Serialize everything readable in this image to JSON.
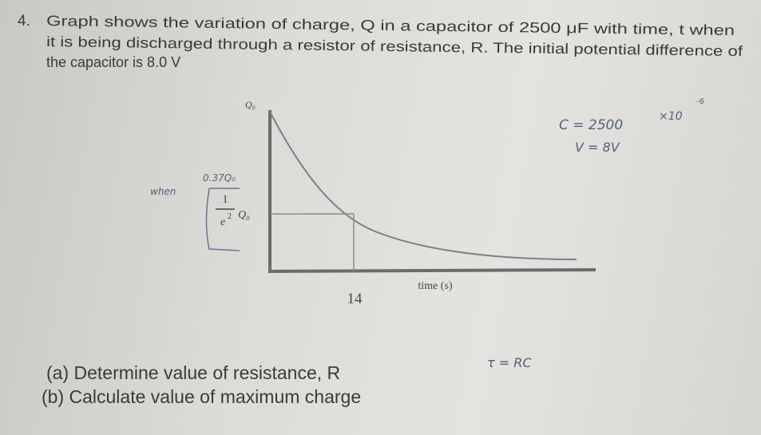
{
  "question": {
    "number": "4.",
    "lines": [
      "Graph shows the variation of charge, Q in a capacitor of 2500 μF with time, t when",
      "it is being discharged through a resistor of resistance, R. The initial potential difference of",
      "the capacitor is 8.0 V"
    ]
  },
  "graph": {
    "y_top_label": "Q₀",
    "fraction_numerator": "1",
    "fraction_denominator_base": "e",
    "fraction_denominator_exponent": "2",
    "fraction_suffix": "Q₀",
    "x_mark_label": "14",
    "x_axis_label": "time (s)"
  },
  "handwritten": {
    "when": "when",
    "value": "0.37Q₀",
    "capacitance": "C = 2500",
    "multiplier": "×10",
    "exponent": "-6",
    "voltage": "V = 8V",
    "time_constant": "τ = RC"
  },
  "parts": [
    "(a) Determine value of resistance, R",
    "(b) Calculate value of maximum charge"
  ]
}
